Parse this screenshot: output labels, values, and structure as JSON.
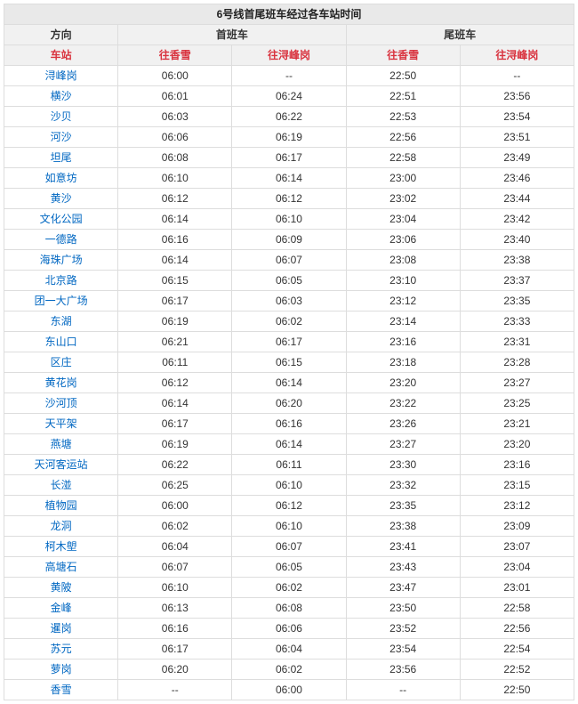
{
  "title": "6号线首尾班车经过各车站时间",
  "headers": {
    "direction": "方向",
    "first_group": "首班车",
    "last_group": "尾班车",
    "station": "车站",
    "to_xiangxue": "往香雪",
    "to_xunfenggang": "往浔峰岗"
  },
  "colors": {
    "header_bg": "#f1f1f1",
    "title_bg": "#e9e9e9",
    "border": "#dddddd",
    "link": "#0067c2",
    "red": "#d9333f",
    "text": "#333333"
  },
  "columns": [
    "station",
    "first_xx",
    "first_xfg",
    "last_xx",
    "last_xfg"
  ],
  "rows": [
    {
      "station": "浔峰岗",
      "first_xx": "06:00",
      "first_xfg": "--",
      "last_xx": "22:50",
      "last_xfg": "--"
    },
    {
      "station": "横沙",
      "first_xx": "06:01",
      "first_xfg": "06:24",
      "last_xx": "22:51",
      "last_xfg": "23:56"
    },
    {
      "station": "沙贝",
      "first_xx": "06:03",
      "first_xfg": "06:22",
      "last_xx": "22:53",
      "last_xfg": "23:54"
    },
    {
      "station": "河沙",
      "first_xx": "06:06",
      "first_xfg": "06:19",
      "last_xx": "22:56",
      "last_xfg": "23:51"
    },
    {
      "station": "坦尾",
      "first_xx": "06:08",
      "first_xfg": "06:17",
      "last_xx": "22:58",
      "last_xfg": "23:49"
    },
    {
      "station": "如意坊",
      "first_xx": "06:10",
      "first_xfg": "06:14",
      "last_xx": "23:00",
      "last_xfg": "23:46"
    },
    {
      "station": "黄沙",
      "first_xx": "06:12",
      "first_xfg": "06:12",
      "last_xx": "23:02",
      "last_xfg": "23:44"
    },
    {
      "station": "文化公园",
      "first_xx": "06:14",
      "first_xfg": "06:10",
      "last_xx": "23:04",
      "last_xfg": "23:42"
    },
    {
      "station": "一德路",
      "first_xx": "06:16",
      "first_xfg": "06:09",
      "last_xx": "23:06",
      "last_xfg": "23:40"
    },
    {
      "station": "海珠广场",
      "first_xx": "06:14",
      "first_xfg": "06:07",
      "last_xx": "23:08",
      "last_xfg": "23:38"
    },
    {
      "station": "北京路",
      "first_xx": "06:15",
      "first_xfg": "06:05",
      "last_xx": "23:10",
      "last_xfg": "23:37"
    },
    {
      "station": "团一大广场",
      "first_xx": "06:17",
      "first_xfg": "06:03",
      "last_xx": "23:12",
      "last_xfg": "23:35"
    },
    {
      "station": "东湖",
      "first_xx": "06:19",
      "first_xfg": "06:02",
      "last_xx": "23:14",
      "last_xfg": "23:33"
    },
    {
      "station": "东山口",
      "first_xx": "06:21",
      "first_xfg": "06:17",
      "last_xx": "23:16",
      "last_xfg": "23:31"
    },
    {
      "station": "区庄",
      "first_xx": "06:11",
      "first_xfg": "06:15",
      "last_xx": "23:18",
      "last_xfg": "23:28"
    },
    {
      "station": "黄花岗",
      "first_xx": "06:12",
      "first_xfg": "06:14",
      "last_xx": "23:20",
      "last_xfg": "23:27"
    },
    {
      "station": "沙河顶",
      "first_xx": "06:14",
      "first_xfg": "06:20",
      "last_xx": "23:22",
      "last_xfg": "23:25"
    },
    {
      "station": "天平架",
      "first_xx": "06:17",
      "first_xfg": "06:16",
      "last_xx": "23:26",
      "last_xfg": "23:21"
    },
    {
      "station": "燕塘",
      "first_xx": "06:19",
      "first_xfg": "06:14",
      "last_xx": "23:27",
      "last_xfg": "23:20"
    },
    {
      "station": "天河客运站",
      "first_xx": "06:22",
      "first_xfg": "06:11",
      "last_xx": "23:30",
      "last_xfg": "23:16"
    },
    {
      "station": "长湴",
      "first_xx": "06:25",
      "first_xfg": "06:10",
      "last_xx": "23:32",
      "last_xfg": "23:15"
    },
    {
      "station": "植物园",
      "first_xx": "06:00",
      "first_xfg": "06:12",
      "last_xx": "23:35",
      "last_xfg": "23:12"
    },
    {
      "station": "龙洞",
      "first_xx": "06:02",
      "first_xfg": "06:10",
      "last_xx": "23:38",
      "last_xfg": "23:09"
    },
    {
      "station": "柯木塱",
      "first_xx": "06:04",
      "first_xfg": "06:07",
      "last_xx": "23:41",
      "last_xfg": "23:07"
    },
    {
      "station": "高塘石",
      "first_xx": "06:07",
      "first_xfg": "06:05",
      "last_xx": "23:43",
      "last_xfg": "23:04"
    },
    {
      "station": "黄陂",
      "first_xx": "06:10",
      "first_xfg": "06:02",
      "last_xx": "23:47",
      "last_xfg": "23:01"
    },
    {
      "station": "金峰",
      "first_xx": "06:13",
      "first_xfg": "06:08",
      "last_xx": "23:50",
      "last_xfg": "22:58"
    },
    {
      "station": "暹岗",
      "first_xx": "06:16",
      "first_xfg": "06:06",
      "last_xx": "23:52",
      "last_xfg": "22:56"
    },
    {
      "station": "苏元",
      "first_xx": "06:17",
      "first_xfg": "06:04",
      "last_xx": "23:54",
      "last_xfg": "22:54"
    },
    {
      "station": "萝岗",
      "first_xx": "06:20",
      "first_xfg": "06:02",
      "last_xx": "23:56",
      "last_xfg": "22:52"
    },
    {
      "station": "香雪",
      "first_xx": "--",
      "first_xfg": "06:00",
      "last_xx": "--",
      "last_xfg": "22:50"
    }
  ]
}
